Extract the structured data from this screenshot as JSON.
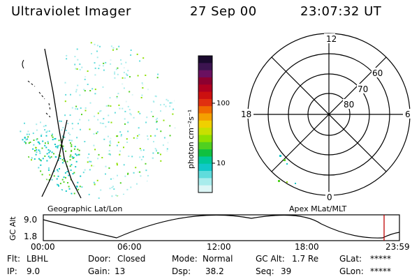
{
  "header": {
    "title": "Ultraviolet Imager",
    "date": "27 Sep 00",
    "time": "23:07:32 UT"
  },
  "left_panel": {
    "caption": "Geographic Lat/Lon"
  },
  "right_panel": {
    "caption": "Apex MLat/MLT",
    "mlt_labels": {
      "top": "12",
      "left": "18",
      "right": "6",
      "bottom": "0"
    },
    "lat_labels": [
      "60",
      "70",
      "80"
    ]
  },
  "colorbar": {
    "unit_label": "photon cm⁻²s⁻¹",
    "ticks": [
      "100",
      "10"
    ],
    "colors": [
      "#1a0a2e",
      "#3c1450",
      "#6a1060",
      "#8c0030",
      "#b00020",
      "#cc1010",
      "#e03010",
      "#f06a00",
      "#f4a000",
      "#f0d000",
      "#c8e000",
      "#8ee000",
      "#50d020",
      "#10c040",
      "#00c89a",
      "#10c8c8",
      "#60dcdc",
      "#a8ecec",
      "#dcf6f6"
    ]
  },
  "gc_plot": {
    "ylabel": "GC Alt",
    "ymax_label": "9.0",
    "ymin_label": "1.8",
    "x_ticks": [
      "00:00",
      "06:00",
      "12:00",
      "18:00",
      "23:59"
    ],
    "marker_color": "#c00000"
  },
  "info": {
    "flt_label": "Flt:",
    "flt_value": "LBHL",
    "ip_label": "IP:",
    "ip_value": "9.0",
    "door_label": "Door:",
    "door_value": "Closed",
    "gain_label": "Gain:",
    "gain_value": "13",
    "mode_label": "Mode:",
    "mode_value": "Normal",
    "dsp_label": "Dsp:",
    "dsp_value": "38.2",
    "gcalt_label": "GC Alt:",
    "gcalt_value": "1.7 Re",
    "seq_label": "Seq:",
    "seq_value": "39",
    "glat_label": "GLat:",
    "glat_value": "*****",
    "glon_label": "GLon:",
    "glon_value": "*****"
  }
}
